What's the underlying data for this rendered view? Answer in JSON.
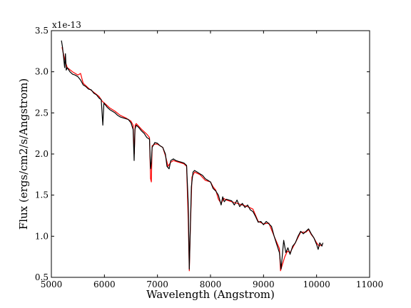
{
  "chart_data": {
    "type": "line",
    "xlabel": "Wavelength (Angstrom)",
    "ylabel": "Flux (ergs/cm2/s/Angstrom)",
    "y_multiplier": "x1e-13",
    "xlim": [
      5000,
      11000
    ],
    "ylim": [
      0.5,
      3.5
    ],
    "x_ticks": [
      5000,
      6000,
      7000,
      8000,
      9000,
      10000,
      11000
    ],
    "y_ticks": [
      0.5,
      1.0,
      1.5,
      2.0,
      2.5,
      3.0,
      3.5
    ],
    "x_tick_labels": [
      "5000",
      "6000",
      "7000",
      "8000",
      "9000",
      "10000",
      "11000"
    ],
    "y_tick_labels": [
      "0.5",
      "1.0",
      "1.5",
      "2.0",
      "2.5",
      "3.0",
      "3.5"
    ],
    "grid": false,
    "series": [
      {
        "color": "#ff0000",
        "points": [
          [
            5200,
            3.3
          ],
          [
            5250,
            3.15
          ],
          [
            5300,
            3.05
          ],
          [
            5400,
            3.0
          ],
          [
            5500,
            2.96
          ],
          [
            5550,
            2.98
          ],
          [
            5600,
            2.86
          ],
          [
            5700,
            2.8
          ],
          [
            5800,
            2.75
          ],
          [
            5900,
            2.7
          ],
          [
            5960,
            2.64
          ],
          [
            6000,
            2.62
          ],
          [
            6100,
            2.56
          ],
          [
            6200,
            2.52
          ],
          [
            6300,
            2.47
          ],
          [
            6400,
            2.44
          ],
          [
            6500,
            2.4
          ],
          [
            6540,
            2.35
          ],
          [
            6563,
            2.0
          ],
          [
            6580,
            2.35
          ],
          [
            6600,
            2.37
          ],
          [
            6700,
            2.3
          ],
          [
            6800,
            2.24
          ],
          [
            6850,
            2.2
          ],
          [
            6870,
            1.7
          ],
          [
            6885,
            1.66
          ],
          [
            6900,
            2.1
          ],
          [
            6950,
            2.12
          ],
          [
            7000,
            2.12
          ],
          [
            7100,
            2.08
          ],
          [
            7150,
            1.98
          ],
          [
            7200,
            1.85
          ],
          [
            7250,
            1.9
          ],
          [
            7300,
            1.92
          ],
          [
            7400,
            1.9
          ],
          [
            7500,
            1.88
          ],
          [
            7550,
            1.85
          ],
          [
            7580,
            1.2
          ],
          [
            7600,
            0.58
          ],
          [
            7620,
            1.1
          ],
          [
            7650,
            1.72
          ],
          [
            7700,
            1.78
          ],
          [
            7800,
            1.75
          ],
          [
            7900,
            1.68
          ],
          [
            8000,
            1.66
          ],
          [
            8050,
            1.6
          ],
          [
            8100,
            1.56
          ],
          [
            8150,
            1.45
          ],
          [
            8200,
            1.4
          ],
          [
            8250,
            1.46
          ],
          [
            8300,
            1.44
          ],
          [
            8400,
            1.42
          ],
          [
            8500,
            1.4
          ],
          [
            8600,
            1.38
          ],
          [
            8700,
            1.36
          ],
          [
            8800,
            1.33
          ],
          [
            8900,
            1.18
          ],
          [
            9000,
            1.15
          ],
          [
            9100,
            1.16
          ],
          [
            9200,
            1.0
          ],
          [
            9300,
            0.85
          ],
          [
            9320,
            0.58
          ],
          [
            9400,
            0.75
          ],
          [
            9450,
            0.82
          ],
          [
            9500,
            0.8
          ],
          [
            9600,
            0.92
          ],
          [
            9700,
            1.05
          ],
          [
            9800,
            1.05
          ],
          [
            9850,
            1.08
          ],
          [
            9900,
            1.02
          ],
          [
            9950,
            0.98
          ],
          [
            10000,
            0.92
          ],
          [
            10050,
            0.88
          ],
          [
            10100,
            0.9
          ]
        ]
      },
      {
        "color": "#000000",
        "points": [
          [
            5190,
            3.38
          ],
          [
            5210,
            3.3
          ],
          [
            5230,
            3.18
          ],
          [
            5250,
            3.05
          ],
          [
            5265,
            3.22
          ],
          [
            5280,
            3.02
          ],
          [
            5300,
            3.05
          ],
          [
            5350,
            3.0
          ],
          [
            5400,
            2.97
          ],
          [
            5450,
            2.96
          ],
          [
            5500,
            2.94
          ],
          [
            5550,
            2.9
          ],
          [
            5600,
            2.84
          ],
          [
            5650,
            2.82
          ],
          [
            5700,
            2.79
          ],
          [
            5750,
            2.78
          ],
          [
            5800,
            2.74
          ],
          [
            5850,
            2.72
          ],
          [
            5900,
            2.68
          ],
          [
            5940,
            2.66
          ],
          [
            5970,
            2.35
          ],
          [
            5990,
            2.62
          ],
          [
            6050,
            2.57
          ],
          [
            6100,
            2.54
          ],
          [
            6150,
            2.52
          ],
          [
            6200,
            2.5
          ],
          [
            6250,
            2.47
          ],
          [
            6300,
            2.45
          ],
          [
            6350,
            2.44
          ],
          [
            6400,
            2.43
          ],
          [
            6450,
            2.42
          ],
          [
            6500,
            2.38
          ],
          [
            6540,
            2.3
          ],
          [
            6560,
            1.92
          ],
          [
            6575,
            2.3
          ],
          [
            6600,
            2.35
          ],
          [
            6650,
            2.32
          ],
          [
            6700,
            2.28
          ],
          [
            6750,
            2.25
          ],
          [
            6800,
            2.2
          ],
          [
            6850,
            2.18
          ],
          [
            6870,
            1.82
          ],
          [
            6885,
            1.9
          ],
          [
            6900,
            2.08
          ],
          [
            6950,
            2.14
          ],
          [
            7000,
            2.13
          ],
          [
            7050,
            2.1
          ],
          [
            7100,
            2.08
          ],
          [
            7150,
            2.0
          ],
          [
            7180,
            1.85
          ],
          [
            7220,
            1.82
          ],
          [
            7250,
            1.92
          ],
          [
            7300,
            1.94
          ],
          [
            7350,
            1.92
          ],
          [
            7400,
            1.91
          ],
          [
            7450,
            1.9
          ],
          [
            7500,
            1.89
          ],
          [
            7550,
            1.86
          ],
          [
            7580,
            1.4
          ],
          [
            7600,
            0.6
          ],
          [
            7615,
            1.0
          ],
          [
            7640,
            1.6
          ],
          [
            7670,
            1.78
          ],
          [
            7700,
            1.8
          ],
          [
            7750,
            1.78
          ],
          [
            7800,
            1.76
          ],
          [
            7850,
            1.74
          ],
          [
            7900,
            1.7
          ],
          [
            7950,
            1.68
          ],
          [
            8000,
            1.66
          ],
          [
            8050,
            1.58
          ],
          [
            8100,
            1.55
          ],
          [
            8150,
            1.5
          ],
          [
            8200,
            1.38
          ],
          [
            8230,
            1.48
          ],
          [
            8260,
            1.42
          ],
          [
            8300,
            1.45
          ],
          [
            8350,
            1.44
          ],
          [
            8400,
            1.43
          ],
          [
            8450,
            1.38
          ],
          [
            8500,
            1.44
          ],
          [
            8550,
            1.36
          ],
          [
            8600,
            1.4
          ],
          [
            8650,
            1.35
          ],
          [
            8700,
            1.38
          ],
          [
            8750,
            1.32
          ],
          [
            8800,
            1.3
          ],
          [
            8850,
            1.24
          ],
          [
            8900,
            1.17
          ],
          [
            8950,
            1.18
          ],
          [
            9000,
            1.14
          ],
          [
            9050,
            1.18
          ],
          [
            9100,
            1.15
          ],
          [
            9150,
            1.12
          ],
          [
            9200,
            1.0
          ],
          [
            9250,
            0.9
          ],
          [
            9300,
            0.8
          ],
          [
            9330,
            0.6
          ],
          [
            9380,
            0.95
          ],
          [
            9420,
            0.8
          ],
          [
            9460,
            0.86
          ],
          [
            9500,
            0.78
          ],
          [
            9550,
            0.88
          ],
          [
            9600,
            0.92
          ],
          [
            9650,
            1.0
          ],
          [
            9700,
            1.06
          ],
          [
            9750,
            1.03
          ],
          [
            9800,
            1.06
          ],
          [
            9850,
            1.09
          ],
          [
            9900,
            1.03
          ],
          [
            9950,
            0.98
          ],
          [
            10000,
            0.9
          ],
          [
            10030,
            0.84
          ],
          [
            10060,
            0.92
          ],
          [
            10100,
            0.88
          ],
          [
            10120,
            0.92
          ]
        ]
      }
    ]
  }
}
